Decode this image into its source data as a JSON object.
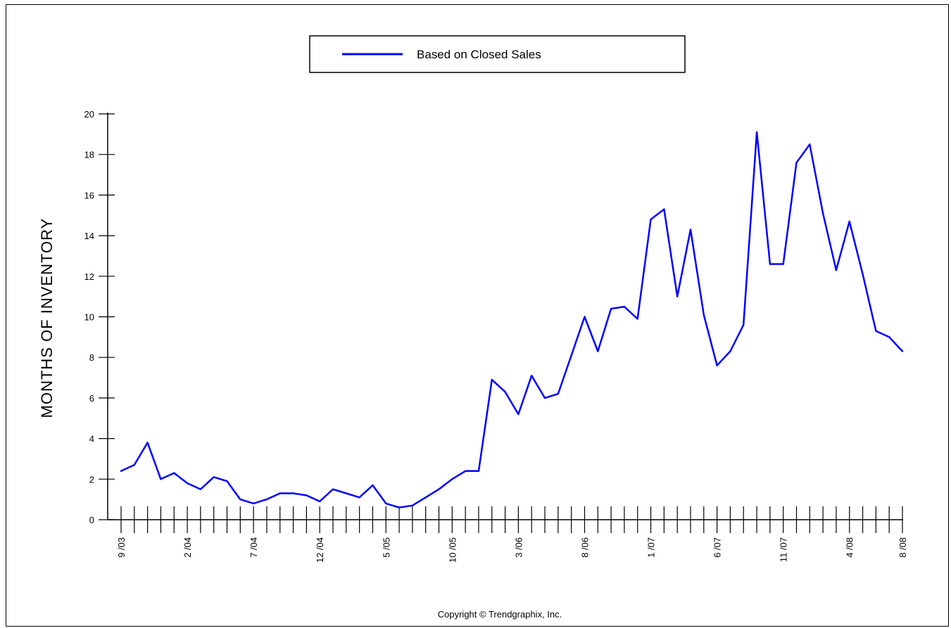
{
  "chart_data": {
    "type": "line",
    "ylabel": "MONTHS OF INVENTORY",
    "xlabel": "",
    "ylim": [
      0,
      20
    ],
    "yticks": [
      0,
      2,
      4,
      6,
      8,
      10,
      12,
      14,
      16,
      18,
      20
    ],
    "x_tick_labels": [
      "9 /03",
      "2 /04",
      "7 /04",
      "12 /04",
      "5 /05",
      "10 /05",
      "3 /06",
      "8 /06",
      "1 /07",
      "6 /07",
      "11 /07",
      "4 /08",
      "8 /08"
    ],
    "grid": false,
    "legend_position": "top-center",
    "line_color": "#0000ff",
    "series": [
      {
        "name": "Based on Closed Sales",
        "x": [
          "9/03",
          "10/03",
          "11/03",
          "12/03",
          "1/04",
          "2/04",
          "3/04",
          "4/04",
          "5/04",
          "6/04",
          "7/04",
          "8/04",
          "9/04",
          "10/04",
          "11/04",
          "12/04",
          "1/05",
          "2/05",
          "3/05",
          "4/05",
          "5/05",
          "6/05",
          "7/05",
          "8/05",
          "9/05",
          "10/05",
          "11/05",
          "12/05",
          "1/06",
          "2/06",
          "3/06",
          "4/06",
          "5/06",
          "6/06",
          "7/06",
          "8/06",
          "9/06",
          "10/06",
          "11/06",
          "12/06",
          "1/07",
          "2/07",
          "3/07",
          "4/07",
          "5/07",
          "6/07",
          "7/07",
          "8/07",
          "9/07",
          "10/07",
          "11/07",
          "12/07",
          "1/08",
          "2/08",
          "3/08",
          "4/08",
          "5/08",
          "6/08",
          "7/08",
          "8/08"
        ],
        "values": [
          2.4,
          2.7,
          3.8,
          2.0,
          2.3,
          1.8,
          1.5,
          2.1,
          1.9,
          1.0,
          0.8,
          1.0,
          1.3,
          1.3,
          1.2,
          0.9,
          1.5,
          1.3,
          1.1,
          1.7,
          0.8,
          0.6,
          0.7,
          1.1,
          1.5,
          2.0,
          2.4,
          2.4,
          6.9,
          6.3,
          5.2,
          7.1,
          6.0,
          6.2,
          8.1,
          10.0,
          8.3,
          10.4,
          10.5,
          9.9,
          14.8,
          15.3,
          11.0,
          14.3,
          10.1,
          7.6,
          8.3,
          9.6,
          19.1,
          12.6,
          12.6,
          17.6,
          18.5,
          15.1,
          12.3,
          14.7,
          12.1,
          9.3,
          9.0,
          8.3
        ]
      }
    ]
  },
  "legend": {
    "label": "Based on Closed Sales"
  },
  "footer": {
    "copyright": "Copyright © Trendgraphix, Inc."
  }
}
